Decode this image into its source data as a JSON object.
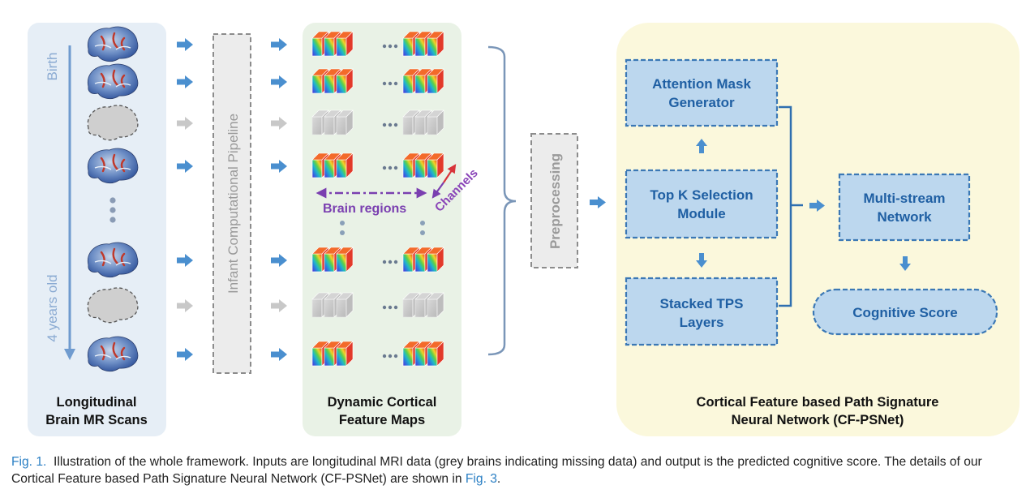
{
  "diagram": {
    "scans_panel": {
      "title_line1": "Longitudinal",
      "title_line2": "Brain MR Scans",
      "timeline_start": "Birth",
      "timeline_end": "4 years old",
      "ellipsis": "⋮"
    },
    "pipeline_label": "Infant Computational Pipeline",
    "feature_panel": {
      "title_line1": "Dynamic Cortical",
      "title_line2": "Feature Maps",
      "brain_regions_label": "Brain regions",
      "channels_label": "Channels"
    },
    "preprocessing_label": "Preprocessing",
    "psnet_panel": {
      "title_line1": "Cortical Feature based Path Signature",
      "title_line2": "Neural Network (CF-PSNet)",
      "attention_line1": "Attention Mask",
      "attention_line2": "Generator",
      "topk_line1": "Top K Selection",
      "topk_line2": "Module",
      "stacked_line1": "Stacked TPS",
      "stacked_line2": "Layers",
      "multistream_line1": "Multi-stream",
      "multistream_line2": "Network",
      "score_label": "Cognitive Score"
    },
    "rows": [
      {
        "present": true
      },
      {
        "present": true
      },
      {
        "present": false
      },
      {
        "present": true
      },
      {
        "present": true
      },
      {
        "present": false
      },
      {
        "present": true
      }
    ],
    "colors": {
      "scans_bg": "#e6eef6",
      "feature_bg": "#e9f2e6",
      "psnet_bg": "#fbf8dc",
      "arrow_blue": "#4a8fcf",
      "box_fill": "#bcd7ee",
      "box_stroke": "#3b78b5",
      "box_text": "#1f5fa3",
      "regions_purple": "#7a3fb0",
      "channels_red": "#d8343a"
    }
  },
  "caption": {
    "fig_label": "Fig. 1.",
    "text_part1": "Illustration of the whole framework. Inputs are longitudinal MRI data (grey brains indicating missing data) and output is the predicted cognitive score. The details of our Cortical Feature based Path Signature Neural Network (CF-PSNet) are shown in",
    "fig3_ref": "Fig. 3",
    "text_end": "."
  }
}
